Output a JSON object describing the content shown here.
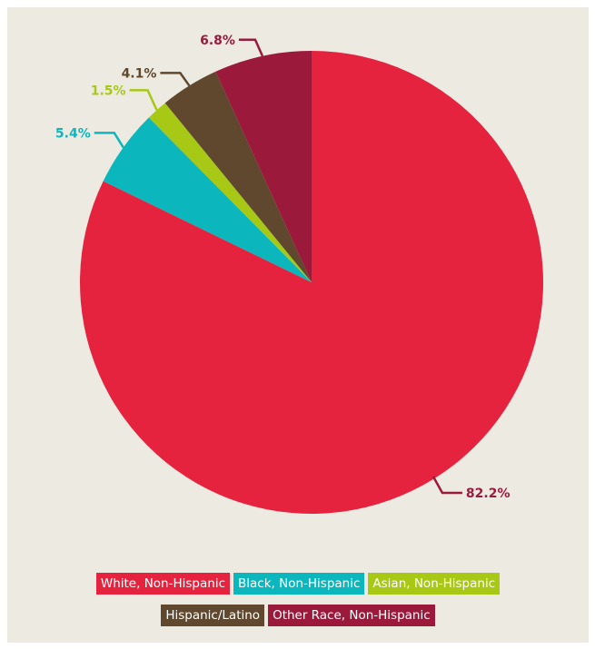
{
  "chart_data": {
    "type": "pie",
    "title": "",
    "start": "top",
    "direction": "clockwise",
    "slices": [
      {
        "label": "White, Non-Hispanic",
        "value": 82.2,
        "value_label": "82.2%",
        "color": "#e5233f",
        "label_color": "#9b1a3c"
      },
      {
        "label": "Black, Non-Hispanic",
        "value": 5.4,
        "value_label": "5.4%",
        "color": "#0bb7bd",
        "label_color": "#0bb7bd"
      },
      {
        "label": "Asian, Non-Hispanic",
        "value": 1.5,
        "value_label": "1.5%",
        "color": "#a8c816",
        "label_color": "#a8c816"
      },
      {
        "label": "Hispanic/Latino",
        "value": 4.1,
        "value_label": "4.1%",
        "color": "#5f482d",
        "label_color": "#5f482d"
      },
      {
        "label": "Other Race, Non-Hispanic",
        "value": 6.8,
        "value_label": "6.8%",
        "color": "#9b1a3c",
        "label_color": "#9b1a3c"
      }
    ],
    "legend": {
      "placement": "bottom"
    }
  },
  "colors": {
    "background": "#edeae1"
  }
}
